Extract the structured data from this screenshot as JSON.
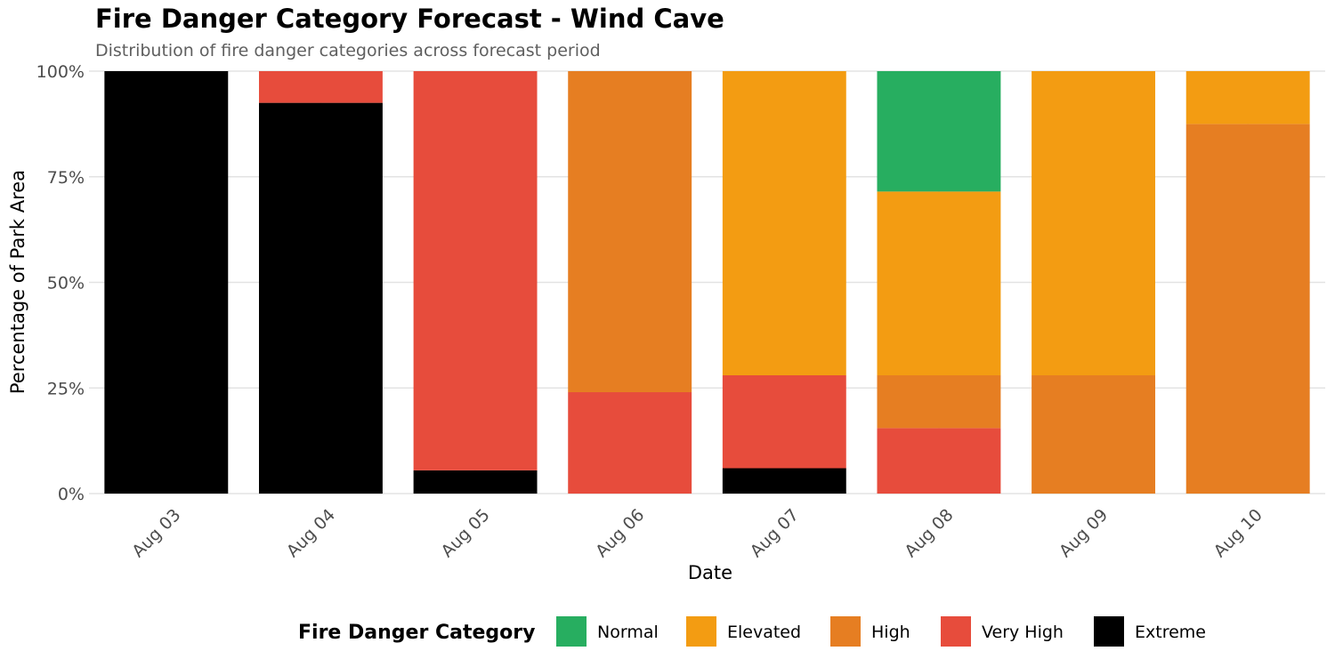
{
  "chart_data": {
    "type": "bar",
    "stacked": true,
    "title": "Fire Danger Category Forecast - Wind Cave",
    "subtitle": "Distribution of fire danger categories across forecast period",
    "xlabel": "Date",
    "ylabel": "Percentage of Park Area",
    "ylim": [
      0,
      100
    ],
    "y_ticks": [
      "0%",
      "25%",
      "50%",
      "75%",
      "100%"
    ],
    "categories": [
      "Aug 03",
      "Aug 04",
      "Aug 05",
      "Aug 06",
      "Aug 07",
      "Aug 08",
      "Aug 09",
      "Aug 10"
    ],
    "series": [
      {
        "name": "Extreme",
        "color": "#000000",
        "values": [
          100,
          92.5,
          5.5,
          0,
          6,
          0,
          0,
          0
        ]
      },
      {
        "name": "Very High",
        "color": "#e74c3c",
        "values": [
          0,
          7.5,
          94.5,
          24,
          22,
          15.5,
          0,
          0
        ]
      },
      {
        "name": "High",
        "color": "#e67e22",
        "values": [
          0,
          0,
          0,
          76,
          0,
          12.5,
          28,
          87.5
        ]
      },
      {
        "name": "Elevated",
        "color": "#f39c12",
        "values": [
          0,
          0,
          0,
          0,
          72,
          43.5,
          72,
          12.5
        ]
      },
      {
        "name": "Normal",
        "color": "#27ae60",
        "values": [
          0,
          0,
          0,
          0,
          0,
          28.5,
          0,
          0
        ]
      }
    ],
    "legend": {
      "title": "Fire Danger Category",
      "position": "bottom",
      "order": [
        "Normal",
        "Elevated",
        "High",
        "Very High",
        "Extreme"
      ]
    },
    "grid": true
  }
}
